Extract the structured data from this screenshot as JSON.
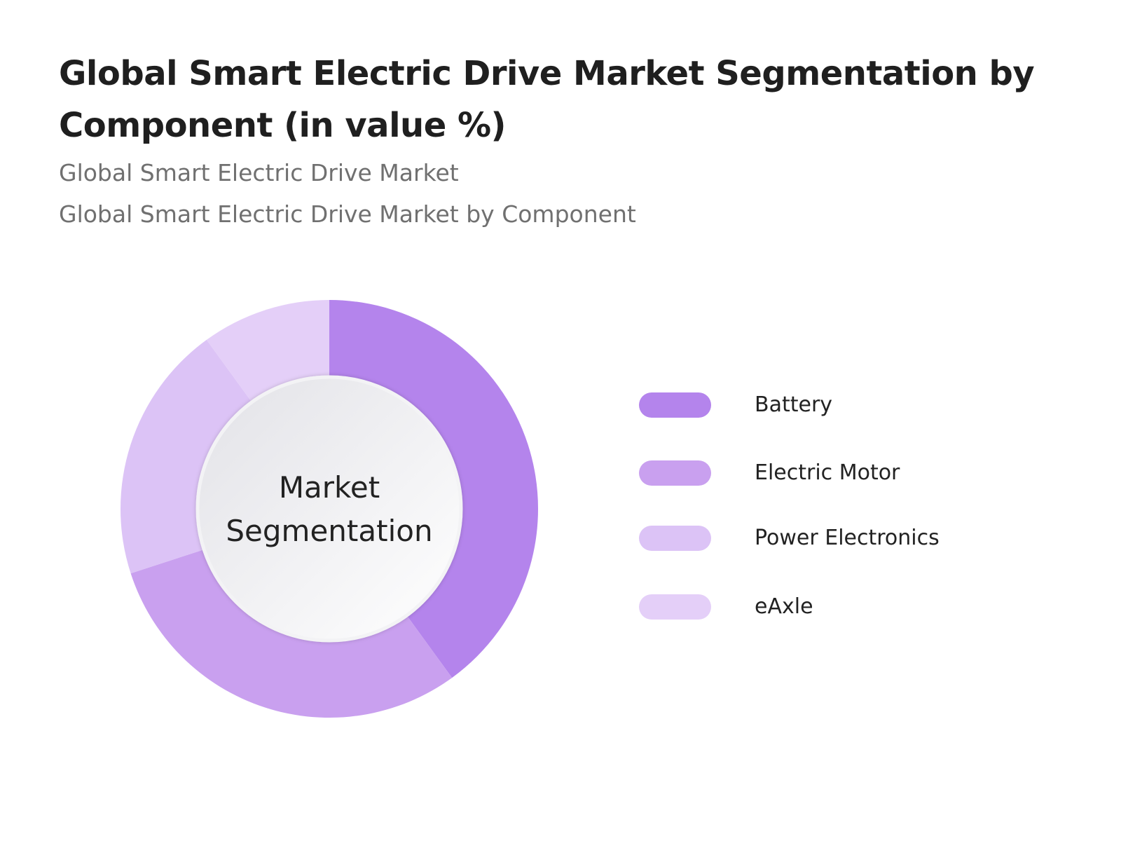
{
  "title": "Global Smart Electric Drive Market Segmentation by Component (in value %)",
  "subtitles": [
    "Global Smart Electric Drive Market",
    "Global Smart Electric Drive Market by Component"
  ],
  "center_label": "Market Segmentation",
  "chart_data": {
    "type": "pie",
    "style": "donut",
    "title": "Global Smart Electric Drive Market Segmentation by Component (in value %)",
    "center_text": "Market Segmentation",
    "legend_position": "right",
    "categories": [
      "Battery",
      "Electric Motor",
      "Power Electronics",
      "eAxle"
    ],
    "values": [
      40,
      30,
      20,
      10
    ],
    "colors": [
      "#b484ec",
      "#c9a0ef",
      "#dcc3f6",
      "#e4cff8"
    ]
  }
}
